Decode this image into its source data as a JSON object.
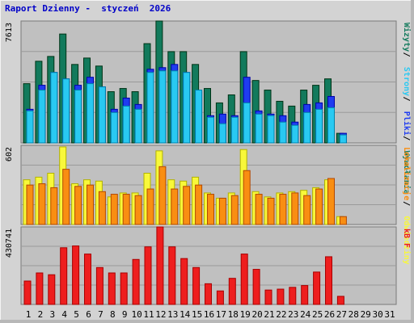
{
  "title": "Raport Dzienny -  styczeń  2026",
  "colors": {
    "background": "#d3d3d3",
    "panel": "#c0c0c0",
    "wizyty": "#127a5c",
    "strony": "#29c9f2",
    "pliki": "#1f3cf0",
    "odwiedziny": "#f8f83a",
    "lokalizacje": "#f98e12",
    "kb": "#ee1e1e",
    "weekday_label": "#000000",
    "weekend_label": "#3a8a5a"
  },
  "chart_data": [
    {
      "type": "bar",
      "panel": "top",
      "ymax_label": "7613",
      "ylim": [
        0,
        7613
      ],
      "legend": [
        "Wizyty",
        "Strony",
        "Pliki",
        "Wywołania"
      ],
      "legend_separator": " / ",
      "categories": [
        "1",
        "2",
        "3",
        "4",
        "5",
        "6",
        "7",
        "8",
        "9",
        "10",
        "11",
        "12",
        "13",
        "14",
        "15",
        "16",
        "17",
        "18",
        "19",
        "20",
        "21",
        "22",
        "23",
        "24",
        "25",
        "26",
        "27",
        "28",
        "29",
        "30",
        "31"
      ],
      "weekend_days": [
        "3",
        "4",
        "10",
        "11",
        "17",
        "18",
        "24",
        "25",
        "31"
      ],
      "series": [
        {
          "name": "Wywołania",
          "values": [
            3700,
            5100,
            5400,
            6800,
            4900,
            5300,
            4800,
            3200,
            3400,
            3200,
            6200,
            7613,
            5700,
            5700,
            4900,
            3400,
            2500,
            3000,
            5700,
            3900,
            3300,
            2600,
            2300,
            3300,
            3600,
            4000,
            600,
            0,
            0,
            0,
            0
          ]
        },
        {
          "name": "Pliki",
          "values": [
            2100,
            3600,
            4400,
            4000,
            3600,
            4100,
            3500,
            2100,
            2800,
            2400,
            4600,
            4700,
            4900,
            4400,
            3200,
            1700,
            1800,
            1700,
            4100,
            2000,
            1800,
            1700,
            1300,
            2400,
            2500,
            2900,
            600,
            0,
            0,
            0,
            0
          ]
        },
        {
          "name": "Strony",
          "values": [
            2000,
            3300,
            4400,
            4000,
            3300,
            3700,
            3500,
            1900,
            2300,
            2100,
            4400,
            4500,
            4500,
            4400,
            3300,
            1600,
            1200,
            1600,
            2500,
            1800,
            1700,
            1300,
            1100,
            1900,
            2100,
            2200,
            500,
            0,
            0,
            0,
            0
          ]
        }
      ]
    },
    {
      "type": "bar",
      "panel": "middle",
      "ymax_label": "602",
      "ylim": [
        0,
        602
      ],
      "legend": [
        "Lokalizacje",
        "Odwiedziny"
      ],
      "legend_separator": " / ",
      "categories": [
        "1",
        "2",
        "3",
        "4",
        "5",
        "6",
        "7",
        "8",
        "9",
        "10",
        "11",
        "12",
        "13",
        "14",
        "15",
        "16",
        "17",
        "18",
        "19",
        "20",
        "21",
        "22",
        "23",
        "24",
        "25",
        "26",
        "27",
        "28",
        "29",
        "30",
        "31"
      ],
      "series": [
        {
          "name": "Odwiedziny",
          "values": [
            340,
            360,
            390,
            590,
            310,
            340,
            330,
            210,
            240,
            240,
            390,
            560,
            340,
            330,
            360,
            240,
            200,
            240,
            570,
            250,
            210,
            240,
            250,
            260,
            280,
            340,
            60,
            0,
            0,
            0,
            0
          ]
        },
        {
          "name": "Lokalizacje",
          "values": [
            300,
            310,
            280,
            420,
            290,
            300,
            250,
            230,
            230,
            220,
            270,
            440,
            270,
            290,
            300,
            230,
            200,
            220,
            410,
            230,
            200,
            230,
            240,
            220,
            270,
            350,
            60,
            0,
            0,
            0,
            0
          ]
        }
      ]
    },
    {
      "type": "bar",
      "panel": "bottom",
      "ymax_label": "430741",
      "ylim": [
        0,
        430741
      ],
      "legend": [
        "kB F"
      ],
      "legend_separator": "",
      "categories": [
        "1",
        "2",
        "3",
        "4",
        "5",
        "6",
        "7",
        "8",
        "9",
        "10",
        "11",
        "12",
        "13",
        "14",
        "15",
        "16",
        "17",
        "18",
        "19",
        "20",
        "21",
        "22",
        "23",
        "24",
        "25",
        "26",
        "27",
        "28",
        "29",
        "30",
        "31"
      ],
      "series": [
        {
          "name": "kB F",
          "values": [
            130000,
            175000,
            165000,
            315000,
            325000,
            280000,
            205000,
            175000,
            175000,
            250000,
            320000,
            430741,
            320000,
            255000,
            205000,
            115000,
            75000,
            145000,
            280000,
            195000,
            80000,
            85000,
            95000,
            105000,
            180000,
            265000,
            45000,
            0,
            0,
            0,
            0
          ]
        }
      ]
    }
  ]
}
